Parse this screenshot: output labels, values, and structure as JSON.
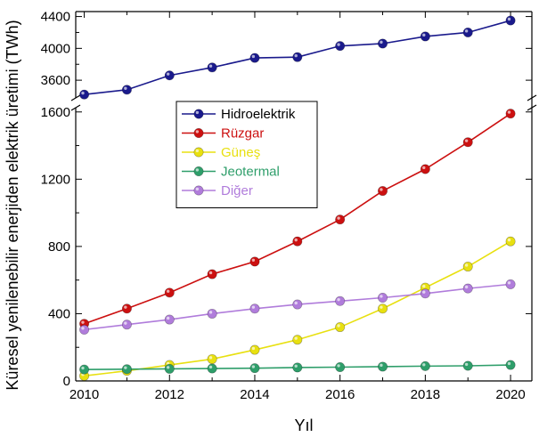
{
  "chart_data": {
    "type": "line",
    "xlabel": "Yıl",
    "ylabel": "Küresel yenilenebilir enerjiden elektrik üretimi (TWh)",
    "x": [
      2010,
      2011,
      2012,
      2013,
      2014,
      2015,
      2016,
      2017,
      2018,
      2019,
      2020
    ],
    "x_ticks": [
      "2010",
      "2012",
      "2014",
      "2016",
      "2018",
      "2020"
    ],
    "xlim": [
      2009.8,
      2020.5
    ],
    "broken_y_axis": true,
    "y_lower": {
      "ylim": [
        0,
        1620
      ],
      "ticks": [
        "0",
        "400",
        "800",
        "1200",
        "1600"
      ]
    },
    "y_upper": {
      "ylim": [
        3400,
        4440
      ],
      "ticks": [
        "3600",
        "4000",
        "4400"
      ]
    },
    "legend_position": "upper-left-center",
    "series": [
      {
        "name": "Hidroelektrik",
        "color": "#1a1a8c",
        "panel": "upper",
        "values": [
          3420,
          3480,
          3660,
          3760,
          3880,
          3890,
          4030,
          4060,
          4150,
          4200,
          4350
        ]
      },
      {
        "name": "Rüzgar",
        "color": "#cc1010",
        "panel": "lower",
        "values": [
          340,
          430,
          525,
          635,
          710,
          830,
          960,
          1130,
          1260,
          1420,
          1590
        ]
      },
      {
        "name": "Güneş",
        "color": "#e8e010",
        "panel": "lower",
        "values": [
          30,
          60,
          95,
          130,
          185,
          245,
          320,
          430,
          555,
          680,
          830
        ]
      },
      {
        "name": "Jeotermal",
        "color": "#2e9e6a",
        "panel": "lower",
        "values": [
          68,
          70,
          72,
          74,
          76,
          80,
          82,
          85,
          88,
          90,
          95
        ]
      },
      {
        "name": "Diğer",
        "color": "#b07cdb",
        "panel": "lower",
        "values": [
          305,
          335,
          365,
          400,
          430,
          455,
          475,
          495,
          520,
          550,
          575
        ]
      }
    ]
  }
}
